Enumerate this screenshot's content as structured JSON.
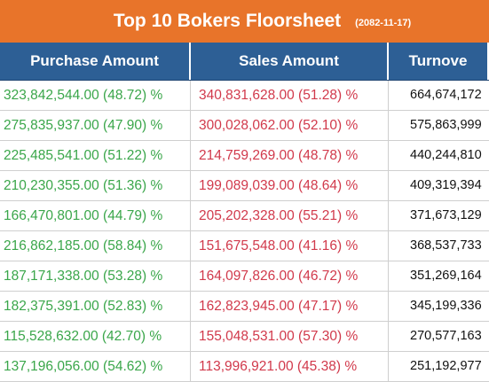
{
  "header": {
    "title": "Top 10 Bokers Floorsheet",
    "date": "(2082-11-17)"
  },
  "columns": {
    "purchase": "Purchase Amount",
    "sales": "Sales Amount",
    "turnover": "Turnove"
  },
  "rows": [
    {
      "purchase": "323,842,544.00 (48.72) %",
      "sales": "340,831,628.00 (51.28) %",
      "turnover": "664,674,172"
    },
    {
      "purchase": "275,835,937.00 (47.90) %",
      "sales": "300,028,062.00 (52.10) %",
      "turnover": "575,863,999"
    },
    {
      "purchase": "225,485,541.00 (51.22) %",
      "sales": "214,759,269.00 (48.78) %",
      "turnover": "440,244,810"
    },
    {
      "purchase": "210,230,355.00 (51.36) %",
      "sales": "199,089,039.00 (48.64) %",
      "turnover": "409,319,394"
    },
    {
      "purchase": "166,470,801.00 (44.79) %",
      "sales": "205,202,328.00 (55.21) %",
      "turnover": "371,673,129"
    },
    {
      "purchase": "216,862,185.00 (58.84) %",
      "sales": "151,675,548.00 (41.16) %",
      "turnover": "368,537,733"
    },
    {
      "purchase": "187,171,338.00 (53.28) %",
      "sales": "164,097,826.00 (46.72) %",
      "turnover": "351,269,164"
    },
    {
      "purchase": "182,375,391.00 (52.83) %",
      "sales": "162,823,945.00 (47.17) %",
      "turnover": "345,199,336"
    },
    {
      "purchase": "115,528,632.00 (42.70) %",
      "sales": "155,048,531.00 (57.30) %",
      "turnover": "270,577,163"
    },
    {
      "purchase": "137,196,056.00 (54.62) %",
      "sales": "113,996,921.00 (45.38) %",
      "turnover": "251,192,977"
    }
  ],
  "colors": {
    "banner": "#e8742a",
    "header": "#2d5f95",
    "purchase_text": "#3aa64a",
    "sales_text": "#d1394b"
  }
}
